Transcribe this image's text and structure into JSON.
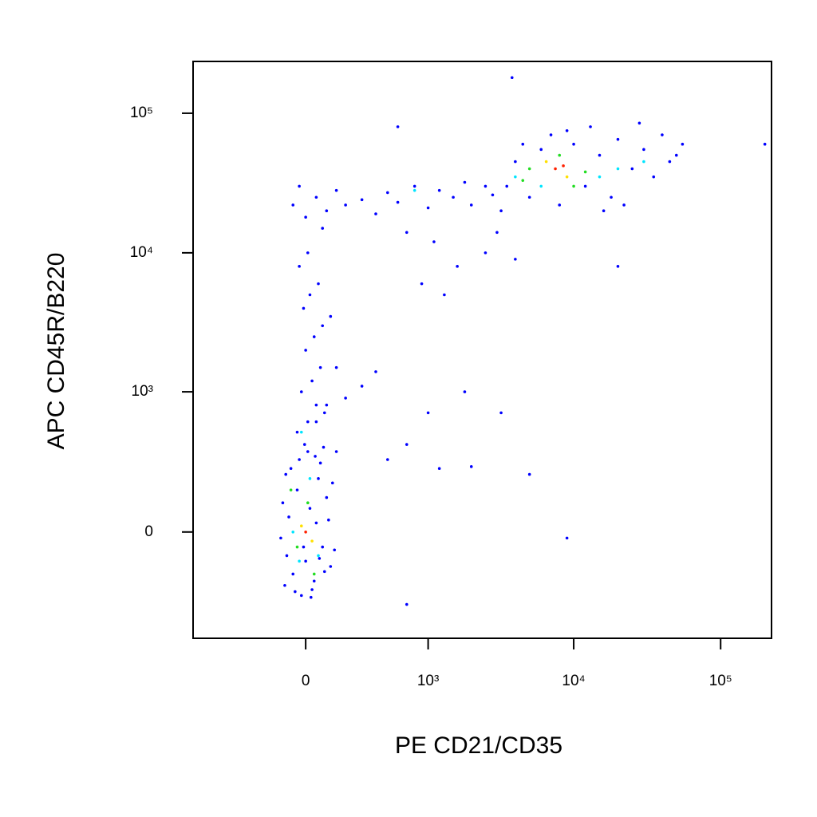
{
  "chart_data": {
    "type": "scatter",
    "x_label": "PE CD21/CD35",
    "y_label": "APC CD45R/B220",
    "xscale": "biexponential",
    "yscale": "biexponential",
    "xlim": [
      -850,
      222000
    ],
    "ylim": [
      -560,
      235000
    ],
    "xticks": [
      0,
      {
        "value": 1000,
        "label": "10³"
      },
      {
        "value": 10000,
        "label": "10⁴"
      },
      {
        "value": 100000,
        "label": "10⁵"
      }
    ],
    "yticks": [
      0,
      {
        "value": 1000,
        "label": "10³"
      },
      {
        "value": 10000,
        "label": "10⁴"
      },
      {
        "value": 100000,
        "label": "10⁵"
      }
    ],
    "series": [
      {
        "color": "#0000ff",
        "x": [
          -100,
          -80,
          -60,
          -40,
          -20,
          0,
          20,
          40,
          60,
          80,
          100,
          120,
          -110,
          -90,
          -70,
          -50,
          -30,
          -10,
          10,
          30,
          50,
          70,
          90,
          110,
          130,
          150,
          -120,
          -5,
          25,
          45,
          140,
          -95,
          65,
          85,
          -40,
          10,
          50,
          90,
          -20,
          30,
          70,
          0,
          40,
          80,
          -10,
          20,
          60,
          100,
          150,
          120,
          -30,
          10,
          50,
          200,
          -60,
          0,
          50,
          100,
          150,
          200,
          300,
          400,
          500,
          600,
          800,
          1000,
          1200,
          1500,
          1800,
          2000,
          2500,
          2800,
          -30,
          80,
          700,
          1100,
          900,
          1300,
          1600,
          2500,
          3000,
          4000,
          3500,
          4000,
          5000,
          6000,
          8000,
          10000,
          12000,
          15000,
          18000,
          20000,
          25000,
          30000,
          35000,
          40000,
          45000,
          50000,
          4500,
          7000,
          9000,
          13000,
          28000,
          55000,
          3200,
          16000,
          22000,
          600,
          3800,
          20000,
          3200,
          1800,
          1000,
          500,
          700,
          1200,
          2000,
          5000,
          9000,
          400,
          300,
          700,
          200000
        ],
        "y": [
          -200,
          50,
          -150,
          150,
          -250,
          -100,
          80,
          -180,
          200,
          -50,
          120,
          -120,
          100,
          -80,
          250,
          -230,
          300,
          -50,
          350,
          -220,
          30,
          280,
          -140,
          40,
          180,
          350,
          -20,
          400,
          -260,
          320,
          -60,
          220,
          -90,
          380,
          500,
          600,
          800,
          700,
          1000,
          1200,
          1500,
          2000,
          2500,
          3000,
          4000,
          5000,
          6000,
          800,
          1500,
          3500,
          8000,
          10000,
          600,
          900,
          22000,
          18000,
          25000,
          20000,
          28000,
          22000,
          24000,
          19000,
          27000,
          23000,
          30000,
          21000,
          28000,
          25000,
          32000,
          22000,
          30000,
          26000,
          30000,
          15000,
          14000,
          12000,
          6000,
          5000,
          8000,
          10000,
          14000,
          9000,
          30000,
          45000,
          25000,
          55000,
          22000,
          60000,
          30000,
          50000,
          25000,
          65000,
          40000,
          55000,
          35000,
          70000,
          45000,
          50000,
          60000,
          70000,
          75000,
          80000,
          85000,
          60000,
          20000,
          20000,
          22000,
          80000,
          180000,
          8000,
          700,
          1000,
          700,
          300,
          -300,
          250,
          260,
          220,
          -20,
          1400,
          1100,
          400,
          60000
        ]
      },
      {
        "color": "#00e5ff",
        "x": [
          -60,
          20,
          -30,
          60,
          4000,
          15000,
          30000,
          800,
          6000,
          20000,
          -20
        ],
        "y": [
          0,
          200,
          -100,
          -80,
          35000,
          35000,
          45000,
          28000,
          30000,
          40000,
          500
        ]
      },
      {
        "color": "#22dd22",
        "x": [
          -40,
          10,
          40,
          -70,
          5000,
          8000,
          12000,
          4500,
          10000
        ],
        "y": [
          -50,
          100,
          -150,
          150,
          40000,
          50000,
          38000,
          33000,
          30000
        ]
      },
      {
        "color": "#ffe000",
        "x": [
          -20,
          30,
          6500,
          9000
        ],
        "y": [
          20,
          -30,
          45000,
          35000
        ]
      },
      {
        "color": "#ff2000",
        "x": [
          0,
          7500,
          8500
        ],
        "y": [
          0,
          40000,
          42000
        ]
      }
    ]
  }
}
